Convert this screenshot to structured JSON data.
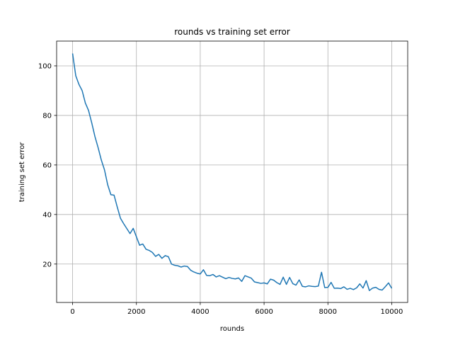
{
  "chart_data": {
    "type": "line",
    "title": "rounds vs training set error",
    "xlabel": "rounds",
    "ylabel": "training set error",
    "xlim": [
      -500,
      10500
    ],
    "ylim": [
      4.5,
      110
    ],
    "xticks": [
      0,
      2000,
      4000,
      6000,
      8000,
      10000
    ],
    "yticks": [
      20,
      40,
      60,
      80,
      100
    ],
    "grid": true,
    "line_color": "#1f77b4",
    "series": [
      {
        "x": [
          0,
          100,
          200,
          300,
          400,
          500,
          600,
          700,
          800,
          900,
          1000,
          1100,
          1200,
          1300,
          1400,
          1500,
          1600,
          1700,
          1800,
          1900,
          2000,
          2100,
          2200,
          2300,
          2400,
          2500,
          2600,
          2700,
          2800,
          2900,
          3000,
          3100,
          3200,
          3300,
          3400,
          3500,
          3600,
          3700,
          3800,
          3900,
          4000,
          4100,
          4200,
          4300,
          4400,
          4500,
          4600,
          4700,
          4800,
          4900,
          5000,
          5100,
          5200,
          5300,
          5400,
          5500,
          5600,
          5700,
          5800,
          5900,
          6000,
          6100,
          6200,
          6300,
          6400,
          6500,
          6600,
          6700,
          6800,
          6900,
          7000,
          7100,
          7200,
          7300,
          7400,
          7500,
          7600,
          7700,
          7800,
          7900,
          8000,
          8100,
          8200,
          8300,
          8400,
          8500,
          8600,
          8700,
          8800,
          8900,
          9000,
          9100,
          9200,
          9300,
          9400,
          9500,
          9600,
          9700,
          9800,
          9900,
          10000
        ],
        "values": [
          105,
          96,
          92.5,
          90,
          85,
          82,
          77,
          71.5,
          67,
          62,
          58,
          52,
          48,
          47.8,
          43,
          38.5,
          36.3,
          34.3,
          32.3,
          34.4,
          31,
          27.6,
          28.1,
          26,
          25.5,
          24.7,
          23.1,
          23.9,
          22.3,
          23.4,
          23,
          20,
          19.5,
          19.3,
          18.8,
          19.2,
          19,
          17.5,
          16.8,
          16.3,
          16,
          17.7,
          15.4,
          15.3,
          15.8,
          14.8,
          15.3,
          14.7,
          14.1,
          14.6,
          14.2,
          14,
          14.4,
          13,
          15.3,
          14.8,
          14.3,
          12.8,
          12.5,
          12.2,
          12.4,
          12,
          13.9,
          13.5,
          12.5,
          11.8,
          14.7,
          11.8,
          14.6,
          12.1,
          11.5,
          13.6,
          11,
          10.8,
          11.2,
          11,
          10.9,
          11.1,
          16.7,
          10.5,
          10.6,
          12.6,
          10.2,
          10.3,
          10.1,
          10.8,
          9.8,
          10.2,
          9.7,
          10.4,
          12,
          10.3,
          13.3,
          9.3,
          10.3,
          10.6,
          9.8,
          9.5,
          10.9,
          12.4,
          10.2
        ]
      }
    ]
  }
}
